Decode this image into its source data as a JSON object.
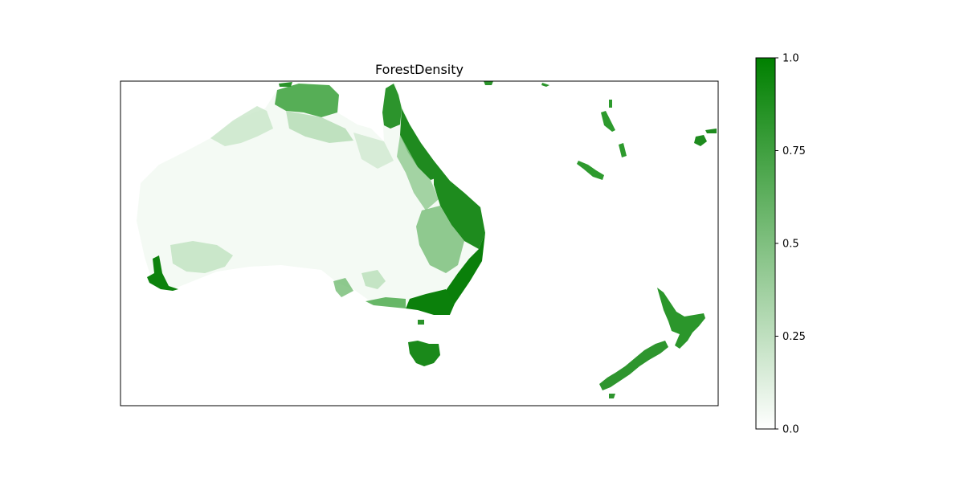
{
  "map": {
    "title": "ForestDensity",
    "regions": [
      {
        "name": "Australia",
        "density": "varied"
      },
      {
        "name": "Tasmania",
        "density": "high"
      },
      {
        "name": "New Zealand North Island",
        "density": "high"
      },
      {
        "name": "New Zealand South Island",
        "density": "high"
      },
      {
        "name": "New Caledonia",
        "density": "high"
      },
      {
        "name": "Vanuatu",
        "density": "high"
      },
      {
        "name": "Fiji",
        "density": "high"
      }
    ]
  },
  "colorbar": {
    "min": 0.0,
    "max": 1.0,
    "ticks": [
      {
        "value": 0.0,
        "label": "0.0"
      },
      {
        "value": 0.25,
        "label": "0.25"
      },
      {
        "value": 0.5,
        "label": "0.5"
      },
      {
        "value": 0.75,
        "label": "0.75"
      },
      {
        "value": 1.0,
        "label": "1.0"
      }
    ],
    "color_low": "#ffffff",
    "color_high": "#008000"
  }
}
